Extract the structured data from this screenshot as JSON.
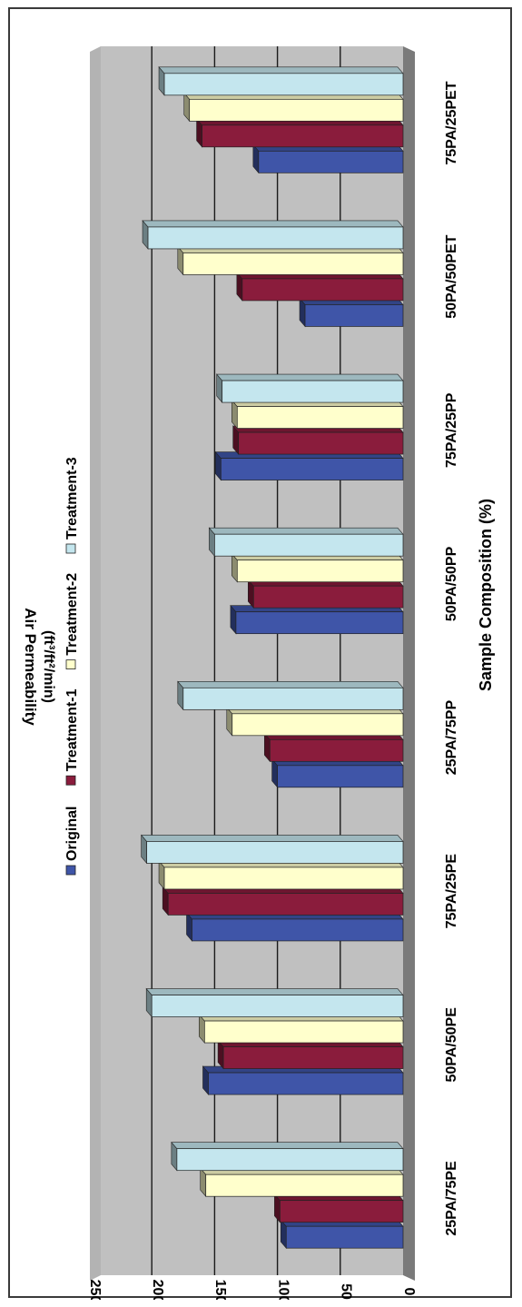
{
  "chart_data": {
    "type": "bar",
    "orientation": "rotated-90",
    "xlabel": "Sample Composition (%)",
    "ylabel": "Air Permeability (ft³/ft²/min)",
    "ylabel_text": "Air Permeability",
    "ylabel_units": "(ft³/ft²/min)",
    "ylim": [
      0,
      250
    ],
    "yticks": [
      "0",
      "50",
      "100",
      "150",
      "200",
      "250"
    ],
    "categories": [
      "25PA/75PE",
      "50PA/50PE",
      "75PA/25PE",
      "25PA/75PP",
      "50PA/50PP",
      "75PA/25PP",
      "50PA/50PET",
      "75PA/25PET"
    ],
    "series": [
      {
        "name": "Original",
        "color": "#3f55a8",
        "values": [
          93,
          155,
          168,
          100,
          133,
          145,
          78,
          115
        ]
      },
      {
        "name": "Treatment-1",
        "color": "#8a1c3c",
        "values": [
          98,
          143,
          187,
          106,
          119,
          131,
          128,
          160
        ]
      },
      {
        "name": "Treatment-2",
        "color": "#ffffcc",
        "values": [
          157,
          158,
          190,
          136,
          132,
          132,
          175,
          170
        ]
      },
      {
        "name": "Treatment-3",
        "color": "#c4e6ee",
        "values": [
          180,
          200,
          204,
          175,
          150,
          144,
          203,
          190
        ]
      }
    ],
    "legend": "top",
    "grid": true
  }
}
